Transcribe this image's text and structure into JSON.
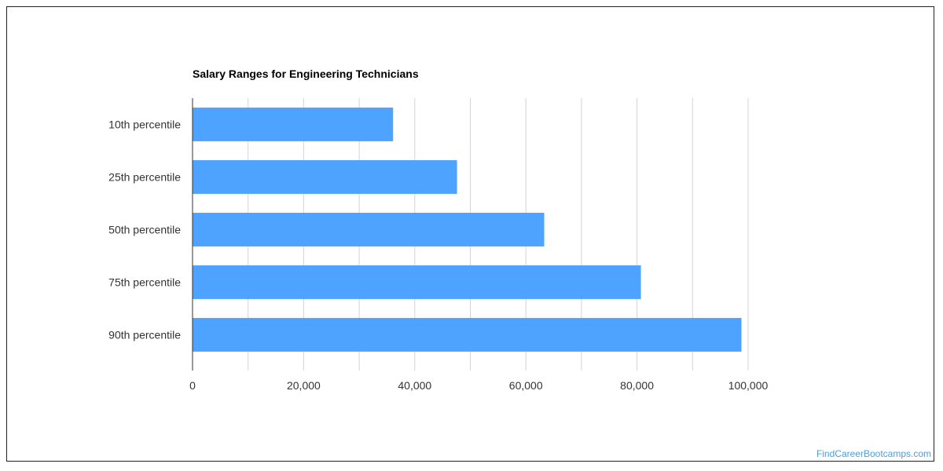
{
  "chart_data": {
    "type": "bar",
    "orientation": "horizontal",
    "title": "Salary Ranges for Engineering Technicians",
    "xlabel": "",
    "ylabel": "",
    "categories": [
      "10th percentile",
      "25th percentile",
      "50th percentile",
      "75th percentile",
      "90th percentile"
    ],
    "values": [
      36100,
      47600,
      63300,
      80700,
      98800
    ],
    "xlim": [
      0,
      100000
    ],
    "x_ticks": [
      0,
      20000,
      40000,
      60000,
      80000,
      100000
    ],
    "x_tick_labels": [
      "0",
      "20,000",
      "40,000",
      "60,000",
      "80,000",
      "100,000"
    ],
    "grid": true,
    "legend": "none",
    "bar_color": "#4da3ff"
  },
  "watermark": "FindCareerBootcamps.com"
}
